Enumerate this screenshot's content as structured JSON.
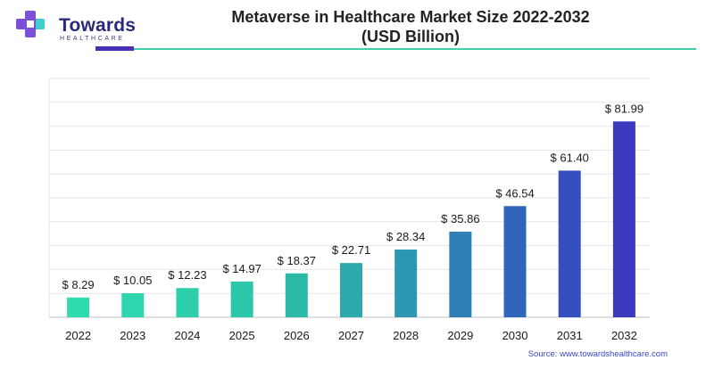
{
  "brand": {
    "name": "Towards",
    "tagline": "HEALTHCARE"
  },
  "chart_data": {
    "type": "bar",
    "title": "Metaverse in Healthcare Market Size 2022-2032",
    "subtitle": "(USD Billion)",
    "categories": [
      "2022",
      "2023",
      "2024",
      "2025",
      "2026",
      "2027",
      "2028",
      "2029",
      "2030",
      "2031",
      "2032"
    ],
    "values": [
      8.29,
      10.05,
      12.23,
      14.97,
      18.37,
      22.71,
      28.34,
      35.86,
      46.54,
      61.4,
      81.99
    ],
    "data_labels": [
      "$ 8.29",
      "$ 10.05",
      "$ 12.23",
      "$ 14.97",
      "$ 18.37",
      "$ 22.71",
      "$ 28.34",
      "$ 35.86",
      "$ 46.54",
      "$ 61.40",
      "$ 81.99"
    ],
    "xlabel": "",
    "ylabel": "",
    "ylim": [
      0,
      100
    ],
    "grid": true,
    "legend": "none",
    "bar_colors": [
      "#2fdcb0",
      "#2ed6ae",
      "#2ccfaa",
      "#2cc6a8",
      "#2cbaa8",
      "#2ca9ac",
      "#2b97b0",
      "#2d7fb4",
      "#3066ba",
      "#3350be",
      "#3c39c0"
    ],
    "source": "Source: www.towardshealthcare.com"
  }
}
